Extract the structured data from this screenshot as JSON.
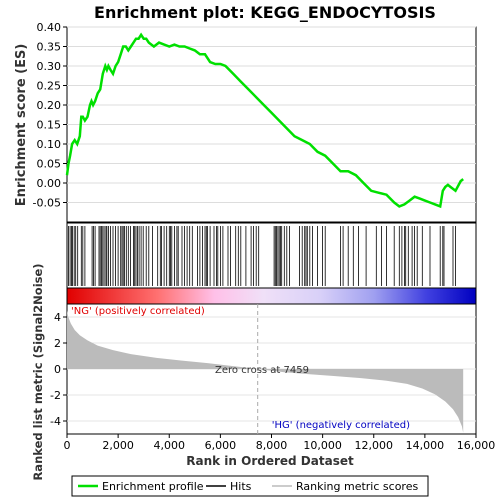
{
  "chart_data": [
    {
      "type": "line",
      "title": "Enrichment plot: KEGG_ENDOCYTOSIS",
      "ylabel": "Enrichment score (ES)",
      "xlim": [
        0,
        16000
      ],
      "ylim": [
        -0.1,
        0.4
      ],
      "yticks": [
        "-0.05",
        "0.00",
        "0.05",
        "0.10",
        "0.15",
        "0.20",
        "0.25",
        "0.30",
        "0.35",
        "0.40"
      ],
      "grid": true,
      "series": [
        {
          "name": "Enrichment profile",
          "color": "#00e000",
          "x": [
            0,
            60,
            120,
            200,
            300,
            400,
            500,
            560,
            620,
            700,
            800,
            900,
            960,
            1020,
            1100,
            1200,
            1300,
            1400,
            1500,
            1560,
            1620,
            1700,
            1800,
            1900,
            2000,
            2100,
            2200,
            2300,
            2400,
            2500,
            2600,
            2700,
            2800,
            2900,
            3000,
            3100,
            3200,
            3400,
            3600,
            3800,
            4000,
            4200,
            4400,
            4600,
            4800,
            5000,
            5200,
            5400,
            5600,
            5800,
            6000,
            6200,
            6500,
            6800,
            7100,
            7400,
            7700,
            8000,
            8300,
            8600,
            8900,
            9200,
            9500,
            9800,
            10100,
            10400,
            10700,
            11000,
            11300,
            11600,
            11900,
            12200,
            12500,
            12800,
            13000,
            13200,
            13400,
            13600,
            13800,
            14000,
            14200,
            14400,
            14600,
            14700,
            14800,
            14900,
            15000,
            15200,
            15400,
            15500
          ],
          "y": [
            0.02,
            0.05,
            0.07,
            0.1,
            0.11,
            0.1,
            0.12,
            0.17,
            0.17,
            0.16,
            0.17,
            0.2,
            0.21,
            0.2,
            0.21,
            0.23,
            0.24,
            0.28,
            0.3,
            0.29,
            0.3,
            0.29,
            0.28,
            0.3,
            0.31,
            0.33,
            0.35,
            0.35,
            0.34,
            0.35,
            0.36,
            0.37,
            0.37,
            0.38,
            0.37,
            0.37,
            0.36,
            0.35,
            0.36,
            0.355,
            0.35,
            0.355,
            0.35,
            0.35,
            0.345,
            0.34,
            0.33,
            0.33,
            0.31,
            0.305,
            0.305,
            0.3,
            0.28,
            0.26,
            0.24,
            0.22,
            0.2,
            0.18,
            0.16,
            0.14,
            0.12,
            0.11,
            0.1,
            0.08,
            0.07,
            0.05,
            0.03,
            0.03,
            0.02,
            0.0,
            -0.02,
            -0.025,
            -0.03,
            -0.05,
            -0.06,
            -0.055,
            -0.045,
            -0.035,
            -0.04,
            -0.045,
            -0.05,
            -0.055,
            -0.06,
            -0.02,
            -0.01,
            -0.005,
            -0.01,
            -0.02,
            0.005,
            0.01
          ]
        }
      ]
    },
    {
      "type": "heatmap",
      "title": "",
      "xlim": [
        0,
        16000
      ],
      "hit_positions": [
        60,
        120,
        180,
        220,
        280,
        340,
        420,
        560,
        620,
        700,
        980,
        1040,
        1100,
        1250,
        1300,
        1350,
        1400,
        1450,
        1520,
        1560,
        1620,
        1700,
        1800,
        1900,
        2000,
        2100,
        2150,
        2200,
        2250,
        2320,
        2400,
        2480,
        2600,
        2650,
        2700,
        2760,
        2820,
        2900,
        2980,
        3100,
        3200,
        3350,
        3550,
        3650,
        3700,
        3800,
        3900,
        4000,
        4050,
        4100,
        4200,
        4300,
        4350,
        4500,
        4600,
        4700,
        4800,
        4900,
        5100,
        5200,
        5300,
        5400,
        5450,
        5500,
        5600,
        5750,
        5850,
        5900,
        6000,
        6100,
        6300,
        6400,
        6600,
        6700,
        6800,
        7000,
        7200,
        7300,
        7400,
        7500,
        8100,
        8150,
        8200,
        8250,
        8300,
        8350,
        8400,
        8500,
        8600,
        8700,
        9100,
        9200,
        9300,
        9350,
        9400,
        9500,
        9600,
        9800,
        10000,
        10100,
        10700,
        10800,
        11000,
        11200,
        11400,
        11700,
        12100,
        12300,
        12500,
        12800,
        13000,
        13100,
        13200,
        13250,
        13350,
        13500,
        13600,
        13700,
        13900,
        14200,
        14600,
        14700,
        14750,
        15100,
        15200
      ]
    },
    {
      "type": "area",
      "title": "",
      "xlabel": "Rank in Ordered Dataset",
      "ylabel": "Ranked list metric (Signal2Noise)",
      "xlim": [
        0,
        16000
      ],
      "ylim": [
        -5,
        5
      ],
      "xticks": [
        "0",
        "2,000",
        "4,000",
        "6,000",
        "8,000",
        "10,000",
        "12,000",
        "14,000",
        "16,000"
      ],
      "yticks": [
        "-4",
        "-2",
        "0",
        "2",
        "4"
      ],
      "x": [
        0,
        50,
        150,
        300,
        500,
        800,
        1200,
        1800,
        2500,
        3500,
        4500,
        5500,
        6500,
        7459,
        8500,
        9500,
        10500,
        11500,
        12500,
        13300,
        13900,
        14400,
        14800,
        15100,
        15300,
        15450,
        15500
      ],
      "values": [
        4.5,
        4.0,
        3.5,
        3.0,
        2.6,
        2.2,
        1.8,
        1.45,
        1.15,
        0.85,
        0.65,
        0.45,
        0.22,
        0.0,
        -0.25,
        -0.4,
        -0.55,
        -0.7,
        -0.9,
        -1.15,
        -1.5,
        -1.95,
        -2.5,
        -3.1,
        -3.7,
        -4.4,
        -4.9
      ],
      "zero_cross_label": "Zero cross at 7459",
      "zero_cross": 7459,
      "pos_label": "'NG' (positively correlated)",
      "neg_label": "'HG' (negatively correlated)"
    }
  ],
  "legend": [
    {
      "label": "Enrichment profile",
      "color": "#00e000"
    },
    {
      "label": "Hits",
      "color": "#000000"
    },
    {
      "label": "Ranking metric scores",
      "color": "#bbbbbb"
    }
  ]
}
